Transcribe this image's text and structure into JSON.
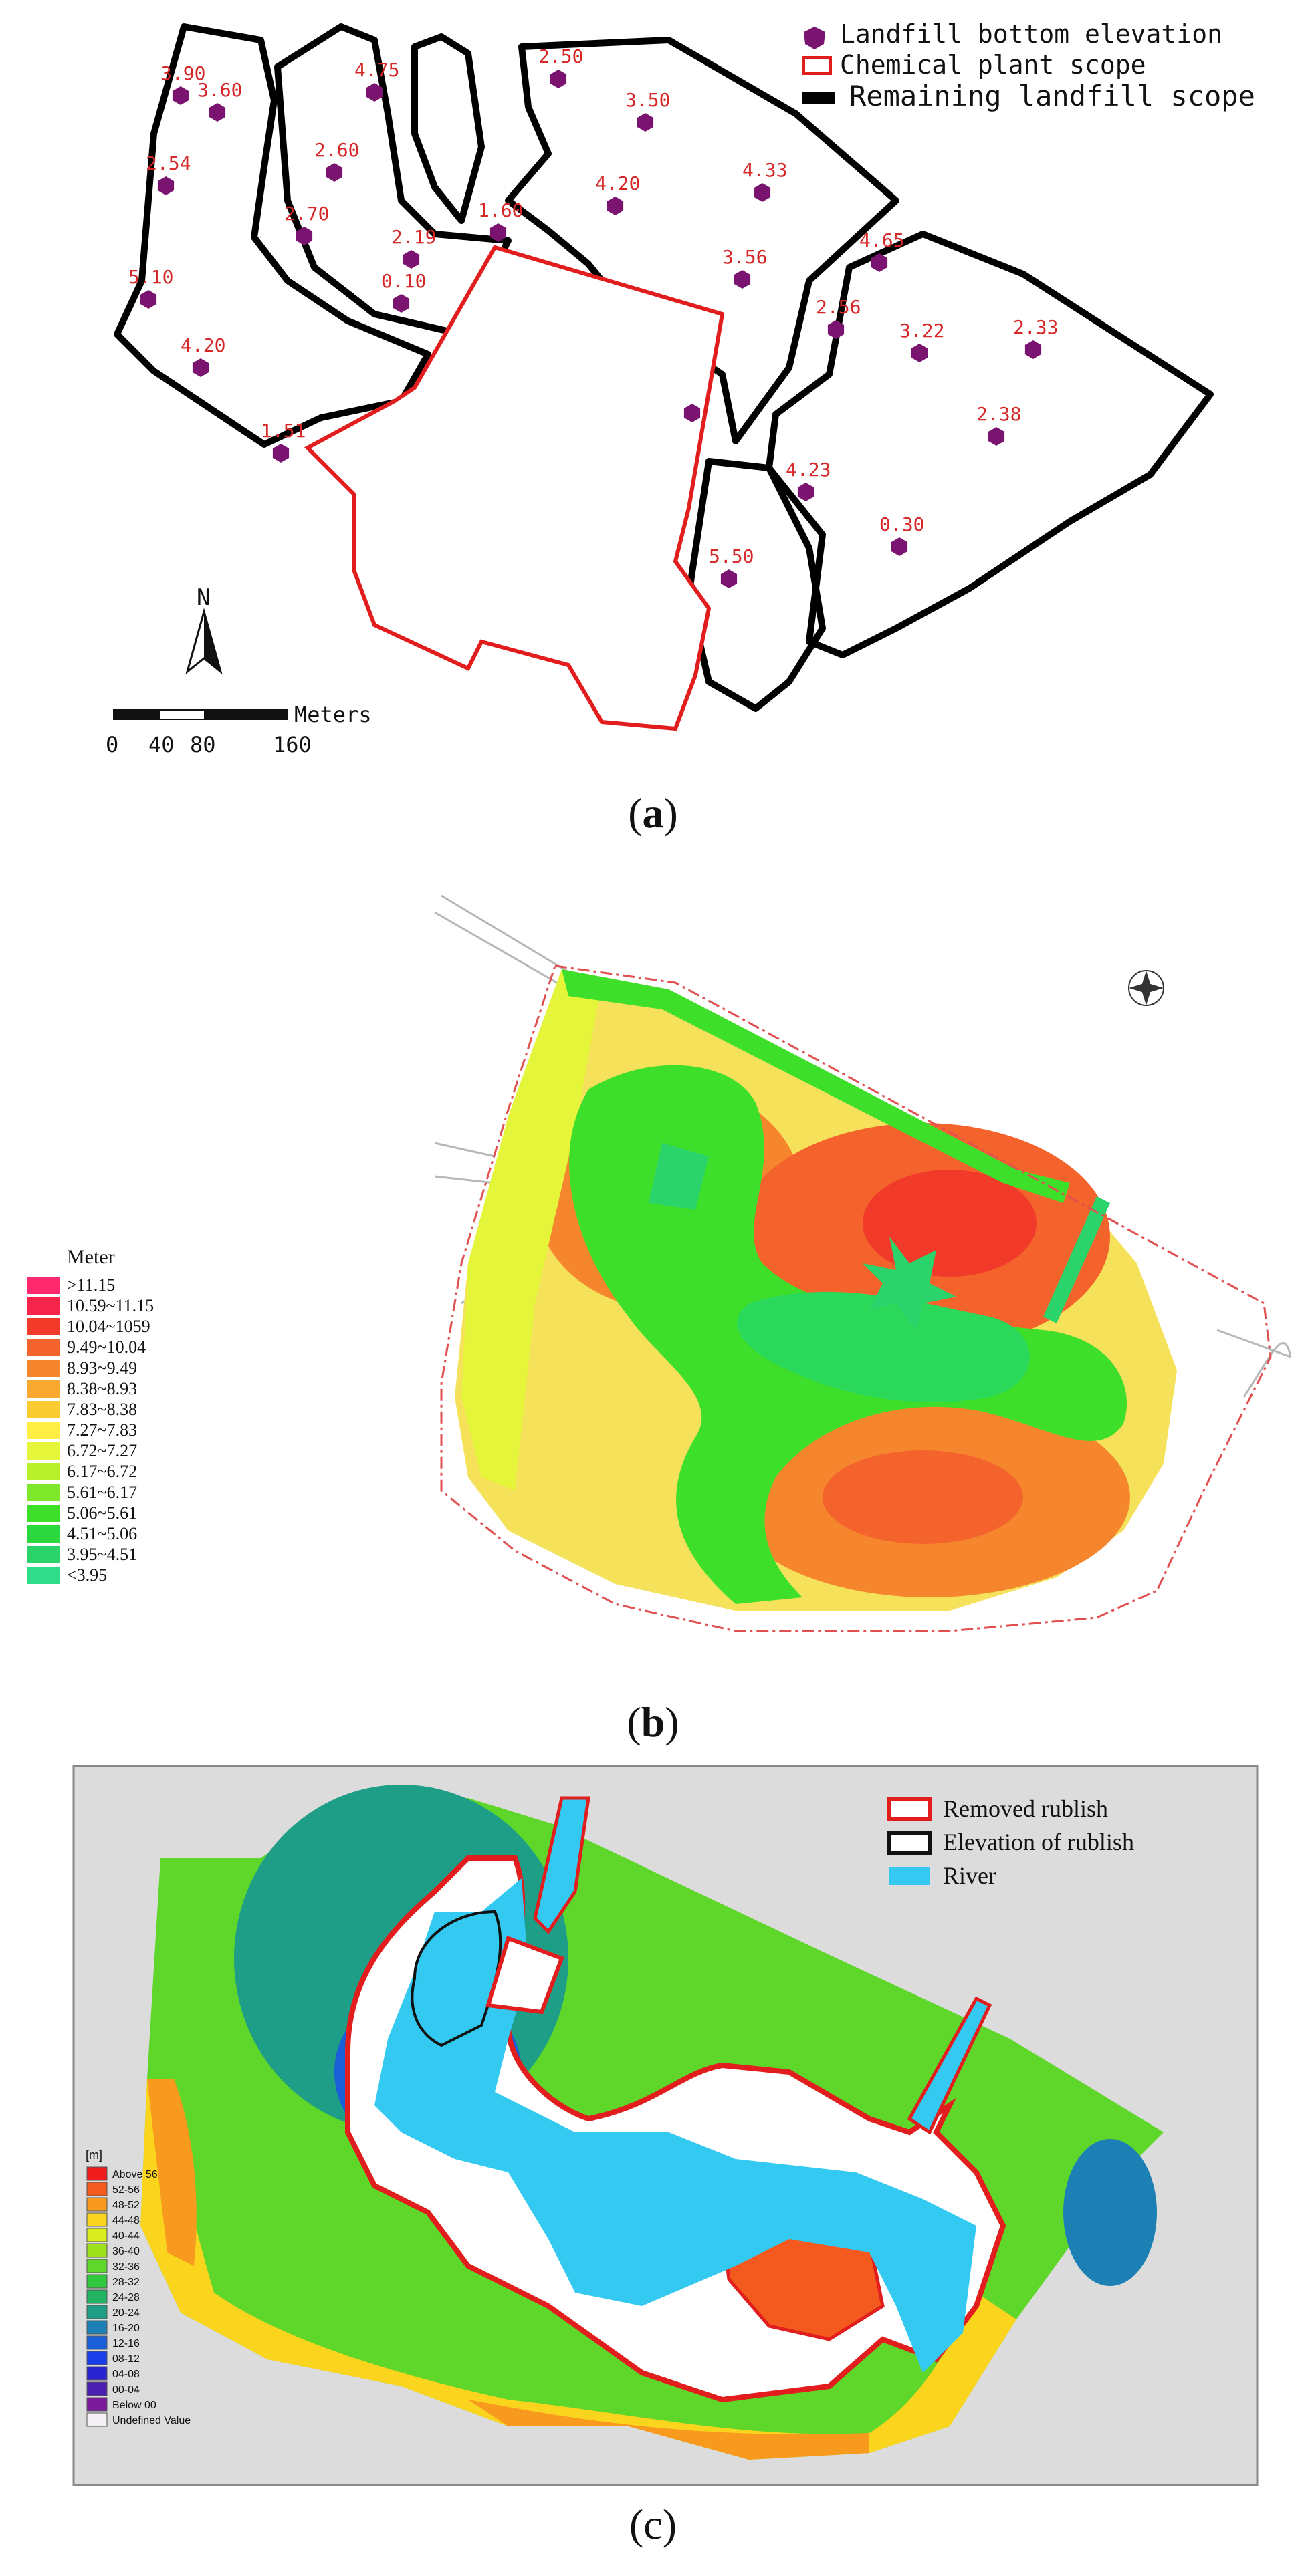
{
  "figure": {
    "captions": [
      "(a)",
      "(b)",
      "(c)"
    ],
    "caption_letters": [
      "a",
      "b",
      "c"
    ]
  },
  "panel_a": {
    "legend": {
      "bottom_elevation": "Landfill  bottom elevation",
      "chemical_plant": "Chemical plant scope",
      "remaining_landfill": "Remaining landfill scope"
    },
    "north_label": "N",
    "scale": {
      "unit": "Meters",
      "ticks": [
        "0",
        "40",
        "80",
        "160"
      ]
    },
    "points": [
      {
        "label": "3.90"
      },
      {
        "label": "3.60"
      },
      {
        "label": "2.54"
      },
      {
        "label": "5.10"
      },
      {
        "label": "4.20"
      },
      {
        "label": "1.51"
      },
      {
        "label": "4.75"
      },
      {
        "label": "2.60"
      },
      {
        "label": "2.70"
      },
      {
        "label": "2.19"
      },
      {
        "label": "0.10"
      },
      {
        "label": "1.60"
      },
      {
        "label": "2.50"
      },
      {
        "label": "3.50"
      },
      {
        "label": "4.20"
      },
      {
        "label": "4.33"
      },
      {
        "label": "3.56"
      },
      {
        "label": "4.65"
      },
      {
        "label": "2.56"
      },
      {
        "label": "3.22"
      },
      {
        "label": "2.33"
      },
      {
        "label": "2.38"
      },
      {
        "label": "4.23"
      },
      {
        "label": "0.30"
      },
      {
        "label": "5.50"
      },
      {
        "label": ""
      }
    ],
    "colors": {
      "marker": "#7a1470",
      "label": "#d62828",
      "plant": "#e11d1d",
      "boundary": "#000000"
    }
  },
  "panel_b": {
    "legend_title": "Meter",
    "legend": [
      {
        "label": ">11.15",
        "color": "#ff2a6d"
      },
      {
        "label": "10.59~11.15",
        "color": "#f5244a"
      },
      {
        "label": "10.04~1059",
        "color": "#f23a2a"
      },
      {
        "label": "9.49~10.04",
        "color": "#f4632c"
      },
      {
        "label": "8.93~9.49",
        "color": "#f6862e"
      },
      {
        "label": "8.38~8.93",
        "color": "#f9a930"
      },
      {
        "label": "7.83~8.38",
        "color": "#fbcc32"
      },
      {
        "label": "7.27~7.83",
        "color": "#ffee44"
      },
      {
        "label": "6.72~7.27",
        "color": "#e4f53a"
      },
      {
        "label": "6.17~6.72",
        "color": "#b8f02c"
      },
      {
        "label": "5.61~6.17",
        "color": "#7fe82a"
      },
      {
        "label": "5.06~5.61",
        "color": "#3ddf2a"
      },
      {
        "label": "4.51~5.06",
        "color": "#2bd93f"
      },
      {
        "label": "3.95~4.51",
        "color": "#2ad46b"
      },
      {
        "label": "<3.95",
        "color": "#2fdc8a"
      }
    ]
  },
  "panel_c": {
    "legend": {
      "removed": "Removed rublish",
      "elevation": "Elevation of rublish",
      "river": "River"
    },
    "unit_label": "[m]",
    "colorbar": [
      {
        "label": "Above 56",
        "color": "#ee1c1c"
      },
      {
        "label": "52-56",
        "color": "#f45a1e"
      },
      {
        "label": "48-52",
        "color": "#f79a1e"
      },
      {
        "label": "44-48",
        "color": "#fbd41e"
      },
      {
        "label": "40-44",
        "color": "#d8ec1e"
      },
      {
        "label": "36-40",
        "color": "#9ee21e"
      },
      {
        "label": "32-36",
        "color": "#5fd62a"
      },
      {
        "label": "28-32",
        "color": "#30c83e"
      },
      {
        "label": "24-28",
        "color": "#22b462"
      },
      {
        "label": "20-24",
        "color": "#1e9e86"
      },
      {
        "label": "16-20",
        "color": "#1c80b4"
      },
      {
        "label": "12-16",
        "color": "#1a5ed8"
      },
      {
        "label": "08-12",
        "color": "#1a3ee8"
      },
      {
        "label": "04-08",
        "color": "#2a24d0"
      },
      {
        "label": "00-04",
        "color": "#4a1eb0"
      },
      {
        "label": "Below 00",
        "color": "#7a1a9a"
      },
      {
        "label": "Undefined Value",
        "color": "#f4f0f4"
      }
    ]
  }
}
